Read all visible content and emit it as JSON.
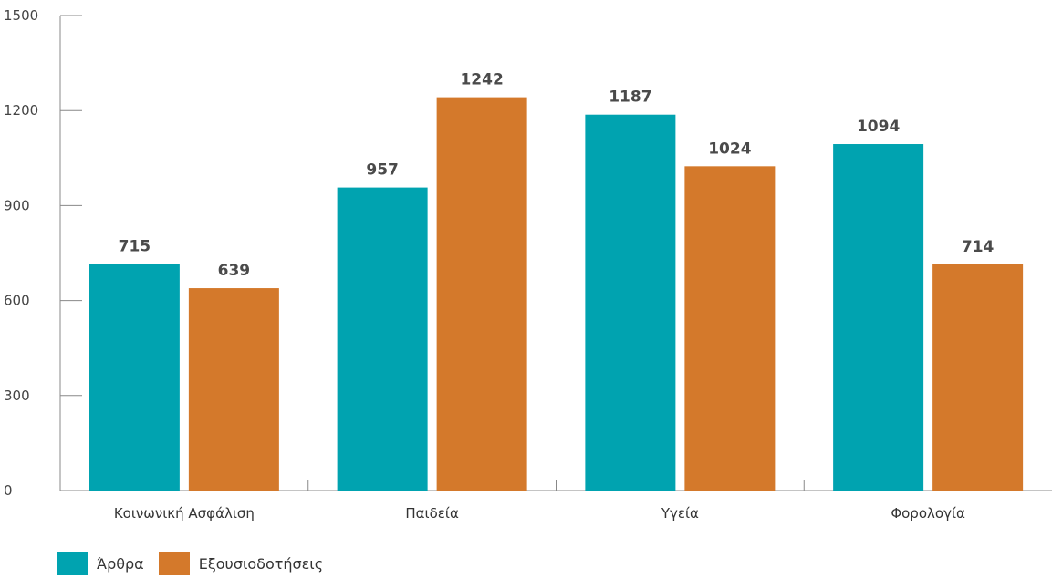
{
  "chart_data": {
    "type": "bar",
    "categories": [
      "Κοινωνική Ασφάλιση",
      "Παιδεία",
      "Υγεία",
      "Φορολογία"
    ],
    "series": [
      {
        "name": "Άρθρα",
        "values": [
          715,
          957,
          1187,
          1094
        ],
        "color": "#00a3b0"
      },
      {
        "name": "Εξουσιοδοτήσεις",
        "values": [
          639,
          1242,
          1024,
          714
        ],
        "color": "#d4792b"
      }
    ],
    "y_ticks": [
      "0",
      "300",
      "600",
      "900",
      "1200",
      "1500"
    ],
    "ylim": [
      0,
      1500
    ],
    "legend_position": "bottom-left",
    "grid": false
  }
}
